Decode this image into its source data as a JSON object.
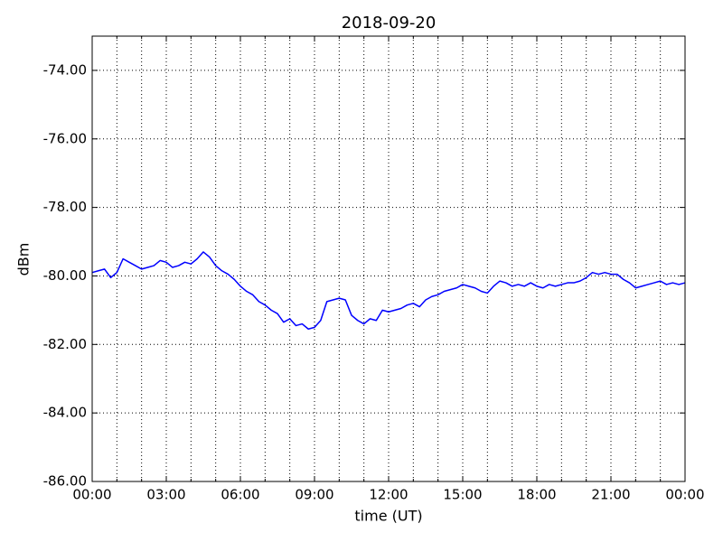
{
  "chart_data": {
    "type": "line",
    "title": "2018-09-20",
    "x_label": "time (UT)",
    "y_label": "dBm",
    "x": [
      0,
      0.25,
      0.5,
      0.75,
      1,
      1.25,
      1.5,
      1.75,
      2,
      2.25,
      2.5,
      2.75,
      3,
      3.25,
      3.5,
      3.75,
      4,
      4.25,
      4.5,
      4.75,
      5,
      5.25,
      5.5,
      5.75,
      6,
      6.25,
      6.5,
      6.75,
      7,
      7.25,
      7.5,
      7.75,
      8,
      8.25,
      8.5,
      8.75,
      9,
      9.25,
      9.5,
      9.75,
      10,
      10.25,
      10.5,
      10.75,
      11,
      11.25,
      11.5,
      11.75,
      12,
      12.25,
      12.5,
      12.75,
      13,
      13.25,
      13.5,
      13.75,
      14,
      14.25,
      14.5,
      14.75,
      15,
      15.25,
      15.5,
      15.75,
      16,
      16.25,
      16.5,
      16.75,
      17,
      17.25,
      17.5,
      17.75,
      18,
      18.25,
      18.5,
      18.75,
      19,
      19.25,
      19.5,
      19.75,
      20,
      20.25,
      20.5,
      20.75,
      21,
      21.25,
      21.5,
      21.75,
      22,
      22.25,
      22.5,
      22.75,
      23,
      23.25,
      23.5,
      23.75,
      24
    ],
    "series": [
      {
        "color": "#0000ff",
        "values": [
          -79.9,
          -79.85,
          -79.8,
          -80.05,
          -79.9,
          -79.5,
          -79.6,
          -79.7,
          -79.8,
          -79.75,
          -79.7,
          -79.55,
          -79.6,
          -79.75,
          -79.7,
          -79.6,
          -79.65,
          -79.5,
          -79.3,
          -79.45,
          -79.7,
          -79.85,
          -79.95,
          -80.1,
          -80.3,
          -80.45,
          -80.55,
          -80.75,
          -80.85,
          -81.0,
          -81.1,
          -81.35,
          -81.25,
          -81.45,
          -81.4,
          -81.55,
          -81.5,
          -81.3,
          -80.75,
          -80.7,
          -80.65,
          -80.7,
          -81.15,
          -81.3,
          -81.4,
          -81.25,
          -81.3,
          -81.0,
          -81.05,
          -81.0,
          -80.95,
          -80.85,
          -80.8,
          -80.9,
          -80.7,
          -80.6,
          -80.55,
          -80.45,
          -80.4,
          -80.35,
          -80.25,
          -80.3,
          -80.35,
          -80.45,
          -80.5,
          -80.3,
          -80.15,
          -80.2,
          -80.3,
          -80.25,
          -80.3,
          -80.2,
          -80.3,
          -80.35,
          -80.25,
          -80.3,
          -80.25,
          -80.2,
          -80.2,
          -80.15,
          -80.05,
          -79.9,
          -79.95,
          -79.9,
          -79.95,
          -79.95,
          -80.1,
          -80.2,
          -80.35,
          -80.3,
          -80.25,
          -80.2,
          -80.15,
          -80.25,
          -80.2,
          -80.25,
          -80.2
        ]
      }
    ],
    "xlim": [
      0,
      24
    ],
    "xticks": [
      {
        "value": 0,
        "label": "00:00"
      },
      {
        "value": 3,
        "label": "03:00"
      },
      {
        "value": 6,
        "label": "06:00"
      },
      {
        "value": 9,
        "label": "09:00"
      },
      {
        "value": 12,
        "label": "12:00"
      },
      {
        "value": 15,
        "label": "15:00"
      },
      {
        "value": 18,
        "label": "18:00"
      },
      {
        "value": 21,
        "label": "21:00"
      },
      {
        "value": 24,
        "label": "00:00"
      }
    ],
    "xminorticks": [
      1,
      2,
      4,
      5,
      7,
      8,
      10,
      11,
      13,
      14,
      16,
      17,
      19,
      20,
      22,
      23
    ],
    "ylim": [
      -86,
      -73
    ],
    "yticks": [
      {
        "value": -86,
        "label": "-86.00"
      },
      {
        "value": -84,
        "label": "-84.00"
      },
      {
        "value": -82,
        "label": "-82.00"
      },
      {
        "value": -80,
        "label": "-80.00"
      },
      {
        "value": -78,
        "label": "-78.00"
      },
      {
        "value": -76,
        "label": "-76.00"
      },
      {
        "value": -74,
        "label": "-74.00"
      }
    ],
    "grid": true
  }
}
